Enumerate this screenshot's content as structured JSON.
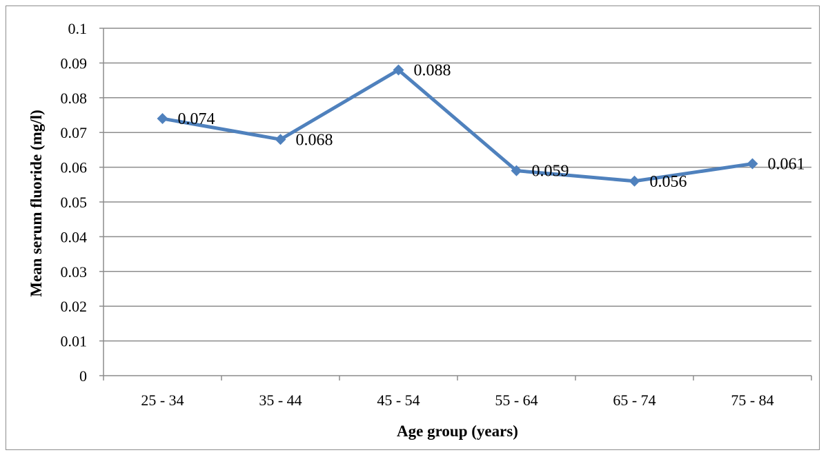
{
  "chart_data": {
    "type": "line",
    "title": "",
    "xlabel": "Age group (years)",
    "ylabel": "Mean serum fluoride (mg/l)",
    "categories": [
      "25 - 34",
      "35 - 44",
      "45 - 54",
      "55 - 64",
      "65 - 74",
      "75 - 84"
    ],
    "series": [
      {
        "values": [
          0.074,
          0.068,
          0.088,
          0.059,
          0.056,
          0.061
        ],
        "labels": [
          "0.074",
          "0.068",
          "0.088",
          "0.059",
          "0.056",
          "0.061"
        ],
        "color": "#4f81bd",
        "marker": "diamond"
      }
    ],
    "ylim": [
      0,
      0.1
    ],
    "yticks": [
      0,
      0.01,
      0.02,
      0.03,
      0.04,
      0.05,
      0.06,
      0.07,
      0.08,
      0.09,
      0.1
    ],
    "ytick_labels": [
      "0",
      "0.01",
      "0.02",
      "0.03",
      "0.04",
      "0.05",
      "0.06",
      "0.07",
      "0.08",
      "0.09",
      "0.1"
    ],
    "grid": true,
    "legend": "none",
    "colors": {
      "gridline": "#8c8c8c",
      "series": "#4f81bd"
    }
  }
}
